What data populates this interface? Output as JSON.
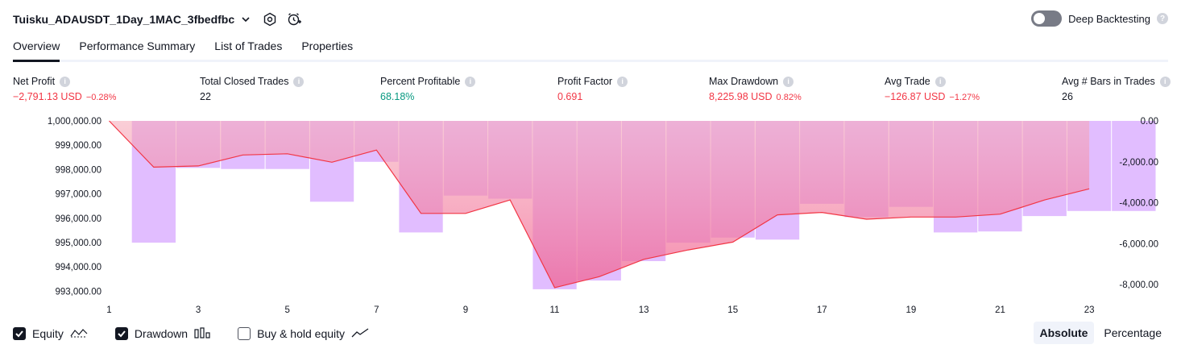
{
  "header": {
    "strategy_name": "Tuisku_ADAUSDT_1Day_1MAC_3fbedfbc",
    "deep_backtesting_label": "Deep Backtesting",
    "deep_backtesting_enabled": false
  },
  "tabs": [
    {
      "label": "Overview",
      "active": true
    },
    {
      "label": "Performance Summary",
      "active": false
    },
    {
      "label": "List of Trades",
      "active": false
    },
    {
      "label": "Properties",
      "active": false
    }
  ],
  "metrics": [
    {
      "label": "Net Profit",
      "value": "−2,791.13 USD",
      "pct": "−0.28%",
      "tone": "neg"
    },
    {
      "label": "Total Closed Trades",
      "value": "22",
      "pct": "",
      "tone": "neutral"
    },
    {
      "label": "Percent Profitable",
      "value": "68.18%",
      "pct": "",
      "tone": "pos"
    },
    {
      "label": "Profit Factor",
      "value": "0.691",
      "pct": "",
      "tone": "neg"
    },
    {
      "label": "Max Drawdown",
      "value": "8,225.98 USD",
      "pct": "0.82%",
      "tone": "neg"
    },
    {
      "label": "Avg Trade",
      "value": "−126.87 USD",
      "pct": "−1.27%",
      "tone": "neg"
    },
    {
      "label": "Avg # Bars in Trades",
      "value": "26",
      "pct": "",
      "tone": "neutral"
    }
  ],
  "chart_data": {
    "type": "bar",
    "x_ticks": [
      "1",
      "3",
      "5",
      "7",
      "9",
      "11",
      "13",
      "15",
      "17",
      "19",
      "21",
      "23"
    ],
    "left_axis": {
      "ticks": [
        "1,000,000.00",
        "999,000.00",
        "998,000.00",
        "997,000.00",
        "996,000.00",
        "995,000.00",
        "994,000.00",
        "993,000.00"
      ],
      "ylim": [
        992500,
        1000000
      ]
    },
    "right_axis": {
      "ticks": [
        "0.00",
        "-2,000.00",
        "-4,000.00",
        "-6,000.00",
        "-8,000.00"
      ],
      "ylim": [
        -8700,
        0
      ]
    },
    "series": [
      {
        "name": "Equity",
        "type": "line",
        "color": "#f23645",
        "x": [
          1,
          2,
          3,
          4,
          5,
          6,
          7,
          8,
          9,
          10,
          11,
          12,
          13,
          14,
          15,
          16,
          17,
          18,
          19,
          20,
          21,
          22,
          23
        ],
        "values": [
          1000000,
          998100,
          998150,
          998600,
          998650,
          998300,
          998800,
          996200,
          996200,
          996750,
          993150,
          993600,
          994310,
          994700,
          995020,
          996140,
          996240,
          995960,
          996050,
          996050,
          996170,
          996750,
          997210
        ]
      },
      {
        "name": "Drawdown",
        "type": "bar",
        "color": "#e1bdff",
        "x": [
          1,
          2,
          3,
          4,
          5,
          6,
          7,
          8,
          9,
          10,
          11,
          12,
          13,
          14,
          15,
          16,
          17,
          18,
          19,
          20,
          21,
          22,
          23,
          24
        ],
        "values": [
          0,
          -5950,
          -2300,
          -2350,
          -2350,
          -3950,
          -2000,
          -5450,
          -3650,
          -3800,
          -8225,
          -7800,
          -6850,
          -5950,
          -5700,
          -5800,
          -4050,
          -4700,
          -4200,
          -5450,
          -5400,
          -4650,
          -4400,
          -4400
        ]
      }
    ]
  },
  "legend": {
    "equity": {
      "label": "Equity",
      "checked": true
    },
    "drawdown": {
      "label": "Drawdown",
      "checked": true
    },
    "buy_hold": {
      "label": "Buy & hold equity",
      "checked": false
    }
  },
  "mode": {
    "absolute_label": "Absolute",
    "percentage_label": "Percentage",
    "active": "absolute"
  }
}
